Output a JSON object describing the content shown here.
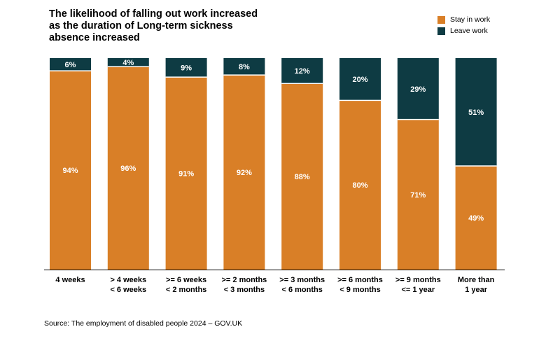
{
  "chart_data": {
    "type": "bar",
    "stacked": true,
    "title": "The likelihood of falling out work increased as the duration of Long-term sickness absence increased",
    "categories": [
      [
        "4 weeks"
      ],
      [
        "> 4 weeks",
        "< 6 weeks"
      ],
      [
        ">= 6 weeks",
        "< 2 months"
      ],
      [
        ">= 2 months",
        "< 3 months"
      ],
      [
        ">= 3 months",
        "< 6 months"
      ],
      [
        ">= 6 months",
        "< 9 months"
      ],
      [
        ">= 9 months",
        "<= 1 year"
      ],
      [
        "More than",
        "1 year"
      ]
    ],
    "series": [
      {
        "name": "Stay in work",
        "color": "#d97f27",
        "values": [
          94,
          96,
          91,
          92,
          88,
          80,
          71,
          49
        ],
        "labels": [
          "94%",
          "96%",
          "91%",
          "92%",
          "88%",
          "80%",
          "71%",
          "49%"
        ]
      },
      {
        "name": "Leave work",
        "color": "#0e3b43",
        "values": [
          6,
          4,
          9,
          8,
          12,
          20,
          29,
          51
        ],
        "labels": [
          "6%",
          "4%",
          "9%",
          "8%",
          "12%",
          "20%",
          "29%",
          "51%"
        ]
      }
    ],
    "ylim": [
      0,
      100
    ],
    "grid": false,
    "legend_position": "top-right"
  },
  "source": "Source: The employment of disabled people 2024  – GOV.UK"
}
